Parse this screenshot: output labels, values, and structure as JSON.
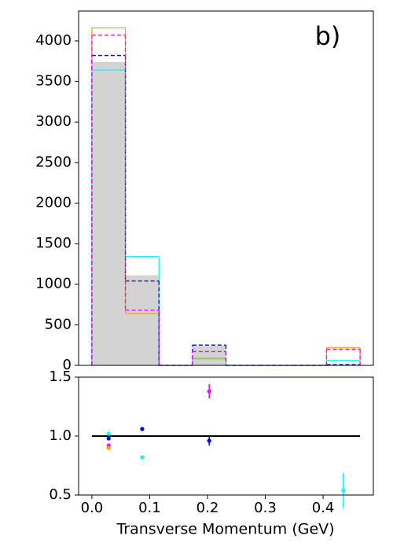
{
  "chart_data": [
    {
      "type": "histogram",
      "annotation": "b)",
      "bins": [
        0,
        0.058,
        0.116,
        0.174,
        0.232,
        0.29,
        0.348,
        0.406,
        0.464
      ],
      "xlim": [
        -0.023,
        0.487
      ],
      "ylim": [
        0,
        4368
      ],
      "yticks": [
        0,
        500,
        1000,
        1500,
        2000,
        2500,
        3000,
        3500,
        4000
      ],
      "series": [
        {
          "color": "#d3d3d3",
          "style": "filled",
          "values": [
            3740,
            1110,
            0,
            245,
            0,
            0,
            0,
            0
          ]
        },
        {
          "color": "#ffa500",
          "style": "solid",
          "values": [
            4160,
            640,
            0,
            80,
            0,
            0,
            0,
            220
          ]
        },
        {
          "color": "#00ffff",
          "style": "solid",
          "values": [
            3640,
            1340,
            0,
            90,
            0,
            0,
            0,
            60
          ]
        },
        {
          "color": "#0000ff",
          "style": "dashed",
          "values": [
            3820,
            1040,
            0,
            250,
            0,
            0,
            0,
            10
          ]
        },
        {
          "color": "#ff00ff",
          "style": "dashed",
          "values": [
            4070,
            680,
            0,
            170,
            0,
            0,
            0,
            200
          ]
        }
      ]
    },
    {
      "type": "errorbar",
      "xlabel": "Transverse Momentum (GeV)",
      "xlim": [
        -0.023,
        0.487
      ],
      "xticks": [
        {
          "value": 0,
          "label": "0.0"
        },
        0.1,
        0.2,
        0.3,
        0.4
      ],
      "ylim": [
        0.5,
        1.5
      ],
      "yticks": [
        0.5,
        {
          "value": 1,
          "label": "1.0"
        },
        1.5
      ],
      "hline": {
        "y": 1,
        "x": [
          0,
          0.464
        ],
        "color": "#000000"
      },
      "series": [
        {
          "color": "#00ffff",
          "x": [
            0.029,
            0.087,
            0.435
          ],
          "values": [
            1.02,
            0.82,
            0.54
          ],
          "errors": [
            null,
            null,
            0.15
          ]
        },
        {
          "color": "#0000ff",
          "x": [
            0.029,
            0.087,
            0.203
          ],
          "values": [
            0.98,
            1.06,
            0.96
          ],
          "errors": [
            null,
            null,
            0.04
          ]
        },
        {
          "color": "#ff00ff",
          "x": [
            0.029,
            0.203
          ],
          "values": [
            0.92,
            1.38
          ],
          "errors": [
            null,
            0.06
          ]
        },
        {
          "color": "#ffa500",
          "x": [
            0.029
          ],
          "values": [
            0.9
          ],
          "errors": [
            null
          ]
        }
      ]
    }
  ]
}
